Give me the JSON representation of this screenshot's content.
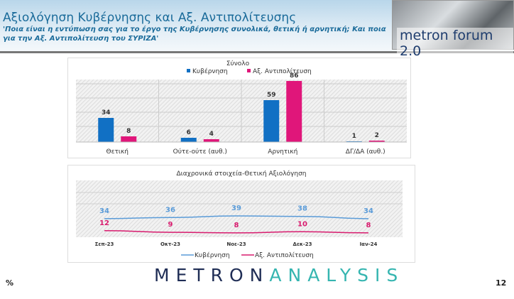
{
  "header": {
    "title": "Αξιολόγηση Κυβέρνησης και Αξ. Αντιπολίτευσης",
    "subtitle": "'Ποια είναι η εντύπωση σας για το έργο της Κυβέρνησης συνολικά, θετική ή αρνητική; Και ποια για την Αξ. Αντιπολίτευση του ΣΥΡΙΖΑ'",
    "logo": "metron forum 2.0"
  },
  "footer": {
    "brand_a": "METRON",
    "brand_b": "ANALYSIS",
    "percent": "%",
    "page": "12"
  },
  "colors": {
    "gov": "#1170c4",
    "opp": "#e0167a",
    "gov_line": "#5a9bd8",
    "opp_line": "#d81b6e"
  },
  "chart_data": [
    {
      "type": "bar",
      "title": "Σύνολο",
      "categories": [
        "Θετική",
        "Ούτε-ούτε (αυθ.)",
        "Αρνητική",
        "ΔΓ/ΔΑ (αυθ.)"
      ],
      "series": [
        {
          "name": "Κυβέρνηση",
          "values": [
            34,
            6,
            59,
            1
          ]
        },
        {
          "name": "Αξ. Αντιπολίτευση",
          "values": [
            8,
            4,
            86,
            2
          ]
        }
      ],
      "ylim": [
        0,
        88
      ],
      "legend": "top",
      "grid": true
    },
    {
      "type": "line",
      "title": "Διαχρονικά στοιχεία-Θετική Αξιολόγηση",
      "categories": [
        "Σεπ-23",
        "Οκτ-23",
        "Νοε-23",
        "Δεκ-23",
        "Ιαν-24"
      ],
      "series": [
        {
          "name": "Κυβέρνηση",
          "values": [
            34,
            36,
            39,
            38,
            34
          ]
        },
        {
          "name": "Αξ. Αντιπολίτευση",
          "values": [
            12,
            9,
            8,
            10,
            8
          ]
        }
      ],
      "ylim": [
        0,
        100
      ],
      "legend": "bottom",
      "grid": true
    }
  ]
}
